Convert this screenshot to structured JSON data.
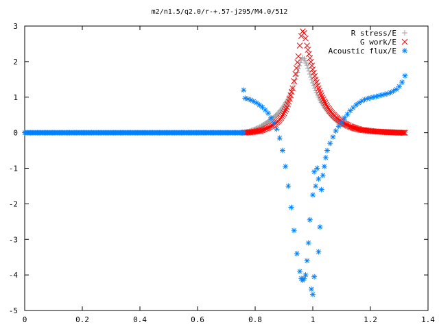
{
  "chart_data": {
    "type": "scatter",
    "title": "m2/n1.5/q2.0/r-+.57-j295/M4.0/512",
    "xlabel": "",
    "ylabel": "",
    "xlim": [
      0,
      1.4
    ],
    "ylim": [
      -5,
      3
    ],
    "xticks": [
      0,
      0.2,
      0.4,
      0.6,
      0.8,
      1,
      1.2,
      1.4
    ],
    "xtick_labels": [
      "0",
      "0.2",
      "0.4",
      "0.6",
      "0.8",
      "1",
      "1.2",
      "1.4"
    ],
    "yticks": [
      -5,
      -4,
      -3,
      -2,
      -1,
      0,
      1,
      2,
      3
    ],
    "ytick_labels": [
      "-5",
      "-4",
      "-3",
      "-2",
      "-1",
      "0",
      "1",
      "2",
      "3"
    ],
    "grid": false,
    "legend_position": "top-right",
    "series": [
      {
        "name": "R stress/E",
        "marker": "plus",
        "color": "#a0a0a0",
        "points": [
          [
            0.76,
            0.0
          ],
          [
            0.77,
            0.02
          ],
          [
            0.78,
            0.04
          ],
          [
            0.79,
            0.07
          ],
          [
            0.8,
            0.1
          ],
          [
            0.81,
            0.14
          ],
          [
            0.82,
            0.18
          ],
          [
            0.83,
            0.23
          ],
          [
            0.84,
            0.28
          ],
          [
            0.85,
            0.34
          ],
          [
            0.86,
            0.4
          ],
          [
            0.87,
            0.47
          ],
          [
            0.88,
            0.55
          ],
          [
            0.89,
            0.65
          ],
          [
            0.9,
            0.76
          ],
          [
            0.91,
            0.89
          ],
          [
            0.92,
            1.05
          ],
          [
            0.93,
            1.25
          ],
          [
            0.94,
            1.5
          ],
          [
            0.95,
            1.8
          ],
          [
            0.96,
            2.05
          ],
          [
            0.965,
            2.12
          ],
          [
            0.97,
            2.08
          ],
          [
            0.98,
            1.9
          ],
          [
            0.99,
            1.65
          ],
          [
            1.0,
            1.4
          ],
          [
            1.01,
            1.18
          ],
          [
            1.02,
            1.0
          ],
          [
            1.03,
            0.85
          ],
          [
            1.04,
            0.72
          ],
          [
            1.05,
            0.61
          ],
          [
            1.06,
            0.51
          ],
          [
            1.07,
            0.42
          ],
          [
            1.08,
            0.35
          ],
          [
            1.09,
            0.29
          ],
          [
            1.1,
            0.24
          ],
          [
            1.11,
            0.2
          ],
          [
            1.12,
            0.16
          ],
          [
            1.13,
            0.13
          ],
          [
            1.14,
            0.11
          ],
          [
            1.15,
            0.09
          ],
          [
            1.17,
            0.06
          ],
          [
            1.19,
            0.04
          ],
          [
            1.21,
            0.03
          ],
          [
            1.23,
            0.02
          ],
          [
            1.26,
            0.01
          ],
          [
            1.29,
            0.0
          ],
          [
            1.32,
            0.0
          ]
        ]
      },
      {
        "name": "G work/E",
        "marker": "cross",
        "color": "#ff0000",
        "points": [
          [
            0.76,
            0.0
          ],
          [
            0.78,
            0.01
          ],
          [
            0.8,
            0.03
          ],
          [
            0.82,
            0.06
          ],
          [
            0.84,
            0.12
          ],
          [
            0.86,
            0.2
          ],
          [
            0.88,
            0.32
          ],
          [
            0.89,
            0.42
          ],
          [
            0.9,
            0.55
          ],
          [
            0.91,
            0.72
          ],
          [
            0.92,
            0.95
          ],
          [
            0.93,
            1.25
          ],
          [
            0.94,
            1.65
          ],
          [
            0.95,
            2.15
          ],
          [
            0.955,
            2.45
          ],
          [
            0.96,
            2.72
          ],
          [
            0.965,
            2.85
          ],
          [
            0.97,
            2.8
          ],
          [
            0.975,
            2.65
          ],
          [
            0.98,
            2.45
          ],
          [
            0.99,
            2.1
          ],
          [
            1.0,
            1.78
          ],
          [
            1.01,
            1.5
          ],
          [
            1.02,
            1.25
          ],
          [
            1.03,
            1.05
          ],
          [
            1.04,
            0.88
          ],
          [
            1.05,
            0.74
          ],
          [
            1.06,
            0.62
          ],
          [
            1.07,
            0.52
          ],
          [
            1.08,
            0.44
          ],
          [
            1.09,
            0.37
          ],
          [
            1.1,
            0.31
          ],
          [
            1.11,
            0.26
          ],
          [
            1.12,
            0.22
          ],
          [
            1.13,
            0.18
          ],
          [
            1.14,
            0.15
          ],
          [
            1.15,
            0.12
          ],
          [
            1.17,
            0.08
          ],
          [
            1.19,
            0.06
          ],
          [
            1.21,
            0.04
          ],
          [
            1.23,
            0.03
          ],
          [
            1.25,
            0.02
          ],
          [
            1.28,
            0.01
          ],
          [
            1.3,
            0.0
          ],
          [
            1.32,
            0.0
          ]
        ]
      },
      {
        "name": "Acoustic flux/E",
        "marker": "star",
        "color": "#0080ff",
        "points": [
          [
            0.0,
            0.0
          ],
          [
            0.02,
            0.0
          ],
          [
            0.04,
            0.0
          ],
          [
            0.06,
            0.0
          ],
          [
            0.08,
            0.0
          ],
          [
            0.1,
            0.0
          ],
          [
            0.12,
            0.0
          ],
          [
            0.14,
            0.0
          ],
          [
            0.16,
            0.0
          ],
          [
            0.18,
            0.0
          ],
          [
            0.2,
            0.0
          ],
          [
            0.22,
            0.0
          ],
          [
            0.24,
            0.0
          ],
          [
            0.26,
            0.0
          ],
          [
            0.28,
            0.0
          ],
          [
            0.3,
            0.0
          ],
          [
            0.32,
            0.0
          ],
          [
            0.34,
            0.0
          ],
          [
            0.36,
            0.0
          ],
          [
            0.38,
            0.0
          ],
          [
            0.4,
            0.0
          ],
          [
            0.42,
            0.0
          ],
          [
            0.44,
            0.0
          ],
          [
            0.46,
            0.0
          ],
          [
            0.48,
            0.0
          ],
          [
            0.5,
            0.0
          ],
          [
            0.52,
            0.0
          ],
          [
            0.54,
            0.0
          ],
          [
            0.56,
            0.0
          ],
          [
            0.58,
            0.0
          ],
          [
            0.6,
            0.0
          ],
          [
            0.62,
            0.0
          ],
          [
            0.64,
            0.0
          ],
          [
            0.66,
            0.0
          ],
          [
            0.68,
            0.0
          ],
          [
            0.7,
            0.0
          ],
          [
            0.72,
            0.0
          ],
          [
            0.74,
            0.0
          ],
          [
            0.76,
            0.0
          ],
          [
            0.76,
            1.2
          ],
          [
            0.765,
            0.97
          ],
          [
            0.775,
            0.95
          ],
          [
            0.785,
            0.92
          ],
          [
            0.795,
            0.88
          ],
          [
            0.805,
            0.84
          ],
          [
            0.815,
            0.78
          ],
          [
            0.825,
            0.72
          ],
          [
            0.835,
            0.64
          ],
          [
            0.845,
            0.55
          ],
          [
            0.855,
            0.42
          ],
          [
            0.865,
            0.28
          ],
          [
            0.875,
            0.1
          ],
          [
            0.885,
            -0.15
          ],
          [
            0.895,
            -0.5
          ],
          [
            0.905,
            -0.95
          ],
          [
            0.915,
            -1.5
          ],
          [
            0.925,
            -2.1
          ],
          [
            0.935,
            -2.75
          ],
          [
            0.945,
            -3.4
          ],
          [
            0.955,
            -3.9
          ],
          [
            0.96,
            -4.1
          ],
          [
            0.965,
            -4.15
          ],
          [
            0.97,
            -4.1
          ],
          [
            0.975,
            -4.0
          ],
          [
            0.98,
            -3.6
          ],
          [
            0.985,
            -3.1
          ],
          [
            0.99,
            -2.45
          ],
          [
            0.995,
            -4.4
          ],
          [
            1.0,
            -4.55
          ],
          [
            1.005,
            -4.05
          ],
          [
            1.0,
            -1.75
          ],
          [
            1.005,
            -1.1
          ],
          [
            1.01,
            -1.5
          ],
          [
            1.015,
            -1.0
          ],
          [
            1.02,
            -1.3
          ],
          [
            1.02,
            -3.35
          ],
          [
            1.025,
            -2.65
          ],
          [
            1.03,
            -1.6
          ],
          [
            1.035,
            -1.2
          ],
          [
            1.04,
            -0.95
          ],
          [
            1.045,
            -0.7
          ],
          [
            1.05,
            -0.5
          ],
          [
            1.06,
            -0.3
          ],
          [
            1.07,
            -0.12
          ],
          [
            1.08,
            0.05
          ],
          [
            1.09,
            0.18
          ],
          [
            1.1,
            0.3
          ],
          [
            1.11,
            0.42
          ],
          [
            1.12,
            0.52
          ],
          [
            1.13,
            0.62
          ],
          [
            1.14,
            0.7
          ],
          [
            1.15,
            0.78
          ],
          [
            1.16,
            0.84
          ],
          [
            1.17,
            0.89
          ],
          [
            1.18,
            0.93
          ],
          [
            1.19,
            0.96
          ],
          [
            1.2,
            0.98
          ],
          [
            1.21,
            1.0
          ],
          [
            1.22,
            1.02
          ],
          [
            1.23,
            1.04
          ],
          [
            1.24,
            1.06
          ],
          [
            1.25,
            1.08
          ],
          [
            1.26,
            1.1
          ],
          [
            1.27,
            1.13
          ],
          [
            1.28,
            1.17
          ],
          [
            1.29,
            1.22
          ],
          [
            1.3,
            1.3
          ],
          [
            1.31,
            1.42
          ],
          [
            1.32,
            1.6
          ]
        ]
      }
    ]
  }
}
